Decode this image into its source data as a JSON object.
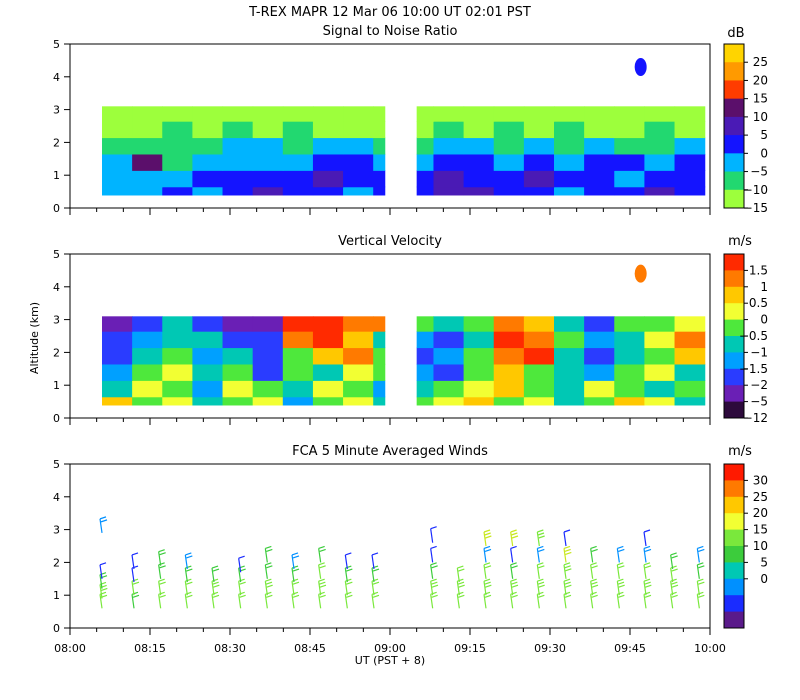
{
  "figure": {
    "title": "T-REX   MAPR 12 Mar 06   10:00 UT   02:01   PST",
    "ylabel": "Altitude (km)",
    "xlabel": "UT  (PST + 8)",
    "x_ticks": [
      "08:00",
      "08:15",
      "08:30",
      "08:45",
      "09:00",
      "09:15",
      "09:30",
      "09:45",
      "10:00"
    ]
  },
  "chart_data": [
    {
      "type": "heatmap",
      "title": "Signal to Noise Ratio",
      "xlabel": "UT  (PST + 8)",
      "ylabel": "",
      "xlim": [
        "08:00",
        "10:00"
      ],
      "ylim": [
        0,
        5
      ],
      "y_ticks": [
        0,
        1,
        2,
        3,
        4,
        5
      ],
      "colorbar": {
        "unit": "dB",
        "ticks": [
          "25",
          "20",
          "15",
          "10",
          "5",
          "0",
          "−5",
          "−10",
          "−15"
        ],
        "colors": [
          "#ffd400",
          "#ff9a00",
          "#ff3c00",
          "#5b0f6b",
          "#4a1ab5",
          "#1414ff",
          "#00b4ff",
          "#22d870",
          "#9dff3c"
        ]
      },
      "data_gap": [
        "08:59",
        "09:05"
      ],
      "level_rows_by_altitude_km": [
        {
          "alt": 0.4,
          "values": [
            -5,
            -5,
            0,
            -5,
            0,
            5,
            0,
            0,
            -5,
            0,
            0,
            5,
            5,
            0,
            0,
            -5,
            0,
            0,
            5,
            0
          ]
        },
        {
          "alt": 0.9,
          "values": [
            -5,
            -5,
            -5,
            0,
            0,
            0,
            0,
            5,
            0,
            0,
            0,
            5,
            0,
            0,
            5,
            0,
            0,
            -5,
            0,
            0
          ]
        },
        {
          "alt": 1.4,
          "values": [
            -5,
            10,
            -10,
            -5,
            -5,
            -5,
            -5,
            0,
            0,
            -5,
            -5,
            0,
            0,
            -5,
            0,
            -5,
            0,
            0,
            -5,
            0
          ]
        },
        {
          "alt": 1.9,
          "values": [
            -10,
            -10,
            -10,
            -10,
            -5,
            -5,
            -10,
            -5,
            -5,
            -10,
            -10,
            -5,
            -5,
            -10,
            -5,
            -10,
            -5,
            -10,
            -10,
            -5
          ]
        },
        {
          "alt": 2.4,
          "values": [
            -15,
            -15,
            -10,
            -15,
            -10,
            -15,
            -10,
            -15,
            -15,
            -15,
            -15,
            -10,
            -15,
            -10,
            -15,
            -10,
            -15,
            -15,
            -10,
            -15
          ]
        },
        {
          "alt": 2.9,
          "values": [
            -15,
            -15,
            -15,
            -15,
            -15,
            -15,
            -15,
            -15,
            -15,
            -15,
            -15,
            -15,
            -15,
            -15,
            -15,
            -15,
            -15,
            -15,
            -15,
            -15
          ]
        }
      ],
      "feature": {
        "label": "isolated echo",
        "time": "09:47",
        "alt_km": 4.3,
        "value": 0
      }
    },
    {
      "type": "heatmap",
      "title": "Vertical Velocity",
      "xlabel": "UT  (PST + 8)",
      "ylabel": "Altitude (km)",
      "xlim": [
        "08:00",
        "10:00"
      ],
      "ylim": [
        0,
        5
      ],
      "y_ticks": [
        0,
        1,
        2,
        3,
        4,
        5
      ],
      "colorbar": {
        "unit": "m/s",
        "ticks": [
          "1.5",
          "1",
          "0.5",
          "0",
          "−0.5",
          "−1",
          "−1.5",
          "−2",
          "−5",
          "−12"
        ],
        "colors": [
          "#ff2a00",
          "#ff7a00",
          "#ffc800",
          "#f2ff33",
          "#4ee83c",
          "#00c8b4",
          "#00a0ff",
          "#2a3cff",
          "#6a1fb5",
          "#2d0a3c"
        ]
      },
      "data_gap": [
        "08:59",
        "09:05"
      ],
      "level_rows_by_altitude_km": [
        {
          "alt": 0.4,
          "values": [
            0.5,
            -0.5,
            0,
            -1,
            -0.5,
            0,
            -1.5,
            -0.5,
            0,
            -1,
            -0.5,
            0,
            0.5,
            -0.5,
            0,
            -1,
            -0.5,
            0.5,
            0,
            -1
          ]
        },
        {
          "alt": 0.9,
          "values": [
            -1,
            0,
            -0.5,
            -1.5,
            0,
            -0.5,
            -1,
            0,
            -0.5,
            -1.5,
            -1,
            -0.5,
            0,
            0.5,
            -0.5,
            -1,
            0,
            -0.5,
            -1,
            -0.5
          ]
        },
        {
          "alt": 1.4,
          "values": [
            -1.5,
            -0.5,
            0,
            -1,
            -0.5,
            -2,
            -0.5,
            -1,
            0,
            -0.5,
            -1.5,
            -2,
            -0.5,
            0.5,
            -0.5,
            -1,
            -1.5,
            -0.5,
            0,
            -1
          ]
        },
        {
          "alt": 1.9,
          "values": [
            -2,
            -1,
            -0.5,
            -1.5,
            -1,
            -2,
            -0.5,
            0.5,
            1,
            -0.5,
            -2,
            -1.5,
            -0.5,
            1,
            1.5,
            -1,
            -2,
            -1,
            -0.5,
            0.5
          ]
        },
        {
          "alt": 2.4,
          "values": [
            -2,
            -1.5,
            -1,
            -1,
            -2,
            -2,
            1,
            1.5,
            0.5,
            -1,
            -1.5,
            -2,
            -1,
            1.5,
            1,
            -0.5,
            -1.5,
            -1,
            0,
            1
          ]
        },
        {
          "alt": 2.9,
          "values": [
            -5,
            -2,
            -1,
            -2,
            -5,
            -5,
            1.5,
            1.5,
            1,
            1,
            -0.5,
            -1,
            -0.5,
            1,
            0.5,
            -1,
            -2,
            -0.5,
            -0.5,
            0
          ]
        }
      ],
      "feature": {
        "label": "isolated echo",
        "time": "09:47",
        "alt_km": 4.4,
        "value": 1
      }
    },
    {
      "type": "scatter",
      "title": "FCA 5 Minute Averaged Winds",
      "xlabel": "UT  (PST + 8)",
      "ylabel": "",
      "xlim": [
        "08:00",
        "10:00"
      ],
      "ylim": [
        0,
        5
      ],
      "y_ticks": [
        0,
        1,
        2,
        3,
        4,
        5
      ],
      "colorbar": {
        "unit": "m/s",
        "ticks": [
          "30",
          "25",
          "20",
          "15",
          "10",
          "5",
          "0"
        ],
        "colors": [
          "#ff1a00",
          "#ff7a00",
          "#ffc800",
          "#f2ff33",
          "#7ae83c",
          "#3ccc3c",
          "#00c8b4",
          "#0090ff",
          "#1a2cff",
          "#5a1a8a"
        ]
      },
      "wind_profiles": [
        {
          "time": "08:06",
          "levels": [
            {
              "alt": 0.6,
              "speed": 12
            },
            {
              "alt": 0.9,
              "speed": 13
            },
            {
              "alt": 1.2,
              "speed": 11
            },
            {
              "alt": 1.5,
              "speed": 6
            },
            {
              "alt": 2.9,
              "speed": 8
            }
          ]
        },
        {
          "time": "08:12",
          "levels": [
            {
              "alt": 0.6,
              "speed": 11
            },
            {
              "alt": 1.0,
              "speed": 12
            },
            {
              "alt": 1.4,
              "speed": 5
            },
            {
              "alt": 1.8,
              "speed": 6
            }
          ]
        },
        {
          "time": "08:17",
          "levels": [
            {
              "alt": 0.6,
              "speed": 12
            },
            {
              "alt": 1.0,
              "speed": 12
            },
            {
              "alt": 1.5,
              "speed": 10
            },
            {
              "alt": 1.9,
              "speed": 11
            }
          ]
        },
        {
          "time": "08:22",
          "levels": [
            {
              "alt": 0.6,
              "speed": 12
            },
            {
              "alt": 1.0,
              "speed": 12
            },
            {
              "alt": 1.4,
              "speed": 11
            },
            {
              "alt": 1.8,
              "speed": 9
            }
          ]
        },
        {
          "time": "08:27",
          "levels": [
            {
              "alt": 0.6,
              "speed": 12
            },
            {
              "alt": 1.0,
              "speed": 13
            },
            {
              "alt": 1.4,
              "speed": 11
            }
          ]
        },
        {
          "time": "08:32",
          "levels": [
            {
              "alt": 0.6,
              "speed": 12
            },
            {
              "alt": 1.0,
              "speed": 12
            },
            {
              "alt": 1.4,
              "speed": 10
            },
            {
              "alt": 1.7,
              "speed": 6
            }
          ]
        },
        {
          "time": "08:37",
          "levels": [
            {
              "alt": 0.6,
              "speed": 12
            },
            {
              "alt": 1.0,
              "speed": 13
            },
            {
              "alt": 1.5,
              "speed": 11
            },
            {
              "alt": 2.0,
              "speed": 10
            }
          ]
        },
        {
          "time": "08:42",
          "levels": [
            {
              "alt": 0.6,
              "speed": 12
            },
            {
              "alt": 1.0,
              "speed": 12
            },
            {
              "alt": 1.4,
              "speed": 11
            },
            {
              "alt": 1.8,
              "speed": 9
            }
          ]
        },
        {
          "time": "08:47",
          "levels": [
            {
              "alt": 0.6,
              "speed": 12
            },
            {
              "alt": 1.0,
              "speed": 13
            },
            {
              "alt": 1.5,
              "speed": 12
            },
            {
              "alt": 2.0,
              "speed": 11
            }
          ]
        },
        {
          "time": "08:52",
          "levels": [
            {
              "alt": 0.6,
              "speed": 12
            },
            {
              "alt": 1.0,
              "speed": 12
            },
            {
              "alt": 1.4,
              "speed": 10
            },
            {
              "alt": 1.8,
              "speed": 6
            }
          ]
        },
        {
          "time": "08:57",
          "levels": [
            {
              "alt": 0.6,
              "speed": 12
            },
            {
              "alt": 1.0,
              "speed": 12
            },
            {
              "alt": 1.4,
              "speed": 10
            },
            {
              "alt": 1.8,
              "speed": 5
            }
          ]
        },
        {
          "time": "09:08",
          "levels": [
            {
              "alt": 0.6,
              "speed": 12
            },
            {
              "alt": 1.0,
              "speed": 13
            },
            {
              "alt": 1.5,
              "speed": 11
            },
            {
              "alt": 2.0,
              "speed": 7
            },
            {
              "alt": 2.6,
              "speed": 5
            }
          ]
        },
        {
          "time": "09:13",
          "levels": [
            {
              "alt": 0.6,
              "speed": 12
            },
            {
              "alt": 1.0,
              "speed": 13
            },
            {
              "alt": 1.4,
              "speed": 12
            }
          ]
        },
        {
          "time": "09:18",
          "levels": [
            {
              "alt": 0.6,
              "speed": 12
            },
            {
              "alt": 1.0,
              "speed": 13
            },
            {
              "alt": 1.5,
              "speed": 12
            },
            {
              "alt": 2.0,
              "speed": 8
            },
            {
              "alt": 2.5,
              "speed": 15
            }
          ]
        },
        {
          "time": "09:23",
          "levels": [
            {
              "alt": 0.6,
              "speed": 12
            },
            {
              "alt": 1.0,
              "speed": 13
            },
            {
              "alt": 1.5,
              "speed": 11
            },
            {
              "alt": 2.0,
              "speed": 7
            },
            {
              "alt": 2.5,
              "speed": 16
            }
          ]
        },
        {
          "time": "09:28",
          "levels": [
            {
              "alt": 0.6,
              "speed": 12
            },
            {
              "alt": 1.0,
              "speed": 13
            },
            {
              "alt": 1.5,
              "speed": 12
            },
            {
              "alt": 2.0,
              "speed": 9
            },
            {
              "alt": 2.5,
              "speed": 13
            }
          ]
        },
        {
          "time": "09:33",
          "levels": [
            {
              "alt": 0.6,
              "speed": 12
            },
            {
              "alt": 1.0,
              "speed": 13
            },
            {
              "alt": 1.5,
              "speed": 14
            },
            {
              "alt": 2.0,
              "speed": 16
            },
            {
              "alt": 2.5,
              "speed": 6
            }
          ]
        },
        {
          "time": "09:38",
          "levels": [
            {
              "alt": 0.6,
              "speed": 12
            },
            {
              "alt": 1.0,
              "speed": 13
            },
            {
              "alt": 1.5,
              "speed": 12
            },
            {
              "alt": 2.0,
              "speed": 11
            }
          ]
        },
        {
          "time": "09:43",
          "levels": [
            {
              "alt": 0.6,
              "speed": 12
            },
            {
              "alt": 1.0,
              "speed": 13
            },
            {
              "alt": 1.5,
              "speed": 12
            },
            {
              "alt": 2.0,
              "speed": 9
            }
          ]
        },
        {
          "time": "09:48",
          "levels": [
            {
              "alt": 0.6,
              "speed": 12
            },
            {
              "alt": 1.0,
              "speed": 13
            },
            {
              "alt": 1.5,
              "speed": 12
            },
            {
              "alt": 2.0,
              "speed": 9
            },
            {
              "alt": 2.5,
              "speed": 5
            }
          ]
        },
        {
          "time": "09:53",
          "levels": [
            {
              "alt": 0.6,
              "speed": 12
            },
            {
              "alt": 1.0,
              "speed": 13
            },
            {
              "alt": 1.4,
              "speed": 12
            },
            {
              "alt": 1.8,
              "speed": 11
            }
          ]
        },
        {
          "time": "09:58",
          "levels": [
            {
              "alt": 0.6,
              "speed": 12
            },
            {
              "alt": 1.0,
              "speed": 12
            },
            {
              "alt": 1.5,
              "speed": 11
            },
            {
              "alt": 2.0,
              "speed": 9
            }
          ]
        }
      ]
    }
  ]
}
